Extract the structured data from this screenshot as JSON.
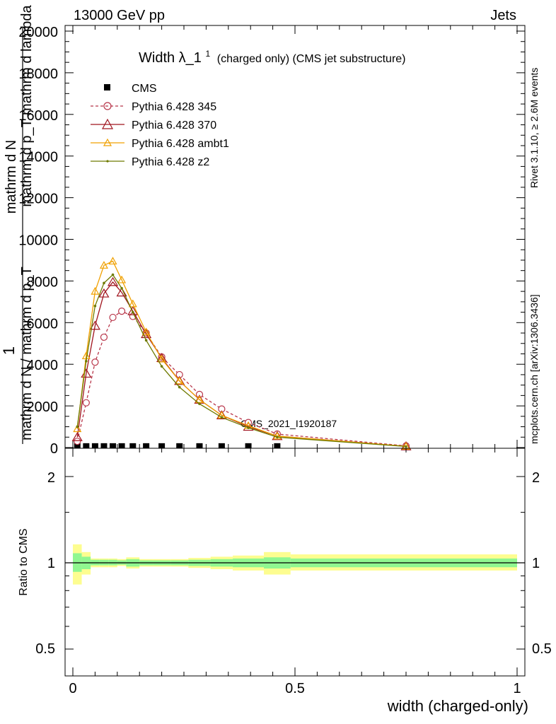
{
  "header": {
    "left": "13000 GeV pp",
    "right": "Jets"
  },
  "side_labels": {
    "rivet": "Rivet 3.1.10, ≥ 2.6M events",
    "mcplots": "mcplots.cern.ch [arXiv:1306.3436]"
  },
  "watermark": "CMS_2021_I1920187",
  "title": {
    "main": "Width λ_1",
    "sup": "1",
    "sub": "(charged only) (CMS jet substructure)"
  },
  "colors": {
    "cms": "#000000",
    "p345": "#b8364a",
    "p370": "#a0141e",
    "ambt1": "#f0a000",
    "z2": "#6e7a00",
    "band_inner": "#90f790",
    "band_outer": "#fdfd90"
  },
  "chart_data": [
    {
      "type": "line",
      "title": "Width λ_1^1 (charged only) (CMS jet substructure)",
      "ylabel": "1 / mathrm d N / mathrm d p_T mathrm d^2 N / mathrm d p_T mathrm d lambda",
      "y_tick_labels": [
        "0",
        "2000",
        "4000",
        "6000",
        "8000",
        "10000",
        "12000",
        "14000",
        "16000",
        "18000",
        "20000"
      ],
      "x_tick_labels": [],
      "xlim": [
        0,
        1
      ],
      "ylim": [
        0,
        20400
      ],
      "legend_position": "top-left",
      "series": [
        {
          "name": "CMS",
          "x": [
            0.01,
            0.03,
            0.05,
            0.07,
            0.09,
            0.11,
            0.135,
            0.165,
            0.2,
            0.24,
            0.285,
            0.335,
            0.395,
            0.46
          ],
          "values": [
            5,
            5,
            5,
            5,
            5,
            5,
            5,
            5,
            5,
            5,
            5,
            5,
            5,
            5
          ]
        },
        {
          "name": "Pythia 6.428 345",
          "x": [
            0.01,
            0.03,
            0.05,
            0.07,
            0.09,
            0.11,
            0.135,
            0.165,
            0.2,
            0.24,
            0.285,
            0.335,
            0.395,
            0.46,
            0.75
          ],
          "values": [
            300,
            2150,
            4100,
            5300,
            6250,
            6550,
            6300,
            5500,
            4350,
            3500,
            2550,
            1850,
            1200,
            650,
            80
          ]
        },
        {
          "name": "Pythia 6.428 370",
          "x": [
            0.01,
            0.03,
            0.05,
            0.07,
            0.09,
            0.11,
            0.135,
            0.165,
            0.2,
            0.24,
            0.285,
            0.335,
            0.395,
            0.46,
            0.75
          ],
          "values": [
            500,
            3550,
            5850,
            7400,
            7950,
            7450,
            6550,
            5450,
            4300,
            3200,
            2300,
            1550,
            1000,
            550,
            60
          ]
        },
        {
          "name": "Pythia 6.428 ambt1",
          "x": [
            0.01,
            0.03,
            0.05,
            0.07,
            0.09,
            0.11,
            0.135,
            0.165,
            0.2,
            0.24,
            0.285,
            0.335,
            0.395,
            0.46,
            0.75
          ],
          "values": [
            900,
            4400,
            7500,
            8750,
            8950,
            8050,
            6900,
            5550,
            4250,
            3200,
            2300,
            1550,
            1050,
            550,
            60
          ]
        },
        {
          "name": "Pythia 6.428 z2",
          "x": [
            0.01,
            0.03,
            0.05,
            0.07,
            0.09,
            0.11,
            0.135,
            0.165,
            0.2,
            0.24,
            0.285,
            0.335,
            0.395,
            0.46,
            0.75
          ],
          "values": [
            1000,
            4150,
            6800,
            7900,
            8300,
            7650,
            6500,
            5150,
            3900,
            2900,
            2100,
            1450,
            950,
            500,
            50
          ]
        }
      ]
    },
    {
      "type": "line",
      "ylabel": "Ratio to CMS",
      "xlabel": "width (charged-only)",
      "x_tick_labels": [
        "0",
        "0.5",
        "1"
      ],
      "y_tick_labels": [
        "0.5",
        "1",
        "2"
      ],
      "y_scale": "log",
      "xlim": [
        0,
        1
      ],
      "ylim": [
        0.4,
        2.4
      ],
      "series": [
        {
          "name": "CMS",
          "x": [
            0.0,
            1.0
          ],
          "values": [
            1,
            1
          ]
        }
      ],
      "uncertainty_band": {
        "edges": [
          0,
          0.02,
          0.04,
          0.06,
          0.08,
          0.1,
          0.12,
          0.15,
          0.18,
          0.22,
          0.26,
          0.31,
          0.36,
          0.43,
          0.49,
          1.0
        ],
        "inner_low": [
          0.93,
          0.95,
          0.98,
          0.98,
          0.98,
          0.985,
          0.97,
          0.98,
          0.98,
          0.98,
          0.975,
          0.97,
          0.965,
          0.955,
          0.965
        ],
        "inner_high": [
          1.08,
          1.05,
          1.025,
          1.025,
          1.025,
          1.02,
          1.03,
          1.02,
          1.02,
          1.02,
          1.025,
          1.03,
          1.035,
          1.045,
          1.035
        ],
        "outer_low": [
          0.84,
          0.91,
          0.965,
          0.965,
          0.965,
          0.975,
          0.955,
          0.97,
          0.97,
          0.97,
          0.96,
          0.95,
          0.94,
          0.91,
          0.94
        ],
        "outer_high": [
          1.16,
          1.09,
          1.035,
          1.035,
          1.035,
          1.03,
          1.045,
          1.03,
          1.03,
          1.03,
          1.04,
          1.05,
          1.06,
          1.09,
          1.07
        ]
      }
    }
  ]
}
